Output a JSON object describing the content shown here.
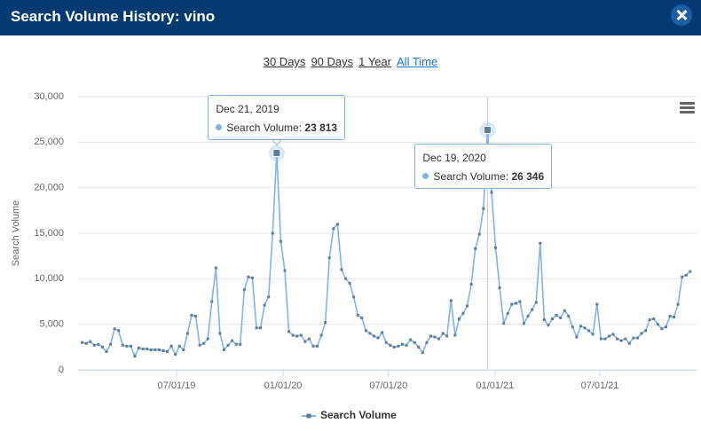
{
  "header": {
    "title": "Search Volume History: vino"
  },
  "ranges": [
    "30 Days",
    "90 Days",
    "1 Year",
    "All Time"
  ],
  "active_range": 3,
  "chart_data": {
    "type": "line",
    "y_label": "Search Volume",
    "x": [
      "2019-01-19",
      "2019-01-26",
      "2019-02-02",
      "2019-02-09",
      "2019-02-16",
      "2019-02-23",
      "2019-03-02",
      "2019-03-09",
      "2019-03-16",
      "2019-03-23",
      "2019-03-30",
      "2019-04-06",
      "2019-04-13",
      "2019-04-20",
      "2019-04-27",
      "2019-05-04",
      "2019-05-11",
      "2019-05-18",
      "2019-05-25",
      "2019-06-01",
      "2019-06-08",
      "2019-06-15",
      "2019-06-22",
      "2019-06-29",
      "2019-07-06",
      "2019-07-13",
      "2019-07-20",
      "2019-07-27",
      "2019-08-03",
      "2019-08-10",
      "2019-08-17",
      "2019-08-24",
      "2019-08-31",
      "2019-09-07",
      "2019-09-14",
      "2019-09-21",
      "2019-09-28",
      "2019-10-05",
      "2019-10-12",
      "2019-10-19",
      "2019-10-26",
      "2019-11-02",
      "2019-11-09",
      "2019-11-16",
      "2019-11-23",
      "2019-11-30",
      "2019-12-07",
      "2019-12-14",
      "2019-12-21",
      "2019-12-28",
      "2020-01-04",
      "2020-01-11",
      "2020-01-18",
      "2020-01-25",
      "2020-02-01",
      "2020-02-08",
      "2020-02-15",
      "2020-02-22",
      "2020-02-29",
      "2020-03-07",
      "2020-03-14",
      "2020-03-21",
      "2020-03-28",
      "2020-04-04",
      "2020-04-11",
      "2020-04-18",
      "2020-04-25",
      "2020-05-02",
      "2020-05-09",
      "2020-05-16",
      "2020-05-23",
      "2020-05-30",
      "2020-06-06",
      "2020-06-13",
      "2020-06-20",
      "2020-06-27",
      "2020-07-04",
      "2020-07-11",
      "2020-07-18",
      "2020-07-25",
      "2020-08-01",
      "2020-08-08",
      "2020-08-15",
      "2020-08-22",
      "2020-08-29",
      "2020-09-05",
      "2020-09-12",
      "2020-09-19",
      "2020-09-26",
      "2020-10-03",
      "2020-10-10",
      "2020-10-17",
      "2020-10-24",
      "2020-10-31",
      "2020-11-07",
      "2020-11-14",
      "2020-11-21",
      "2020-11-28",
      "2020-12-05",
      "2020-12-12",
      "2020-12-19",
      "2020-12-26",
      "2021-01-02",
      "2021-01-09",
      "2021-01-16",
      "2021-01-23",
      "2021-01-30",
      "2021-02-06",
      "2021-02-13",
      "2021-02-20",
      "2021-02-27",
      "2021-03-06",
      "2021-03-13",
      "2021-03-20",
      "2021-03-27",
      "2021-04-03",
      "2021-04-10",
      "2021-04-17",
      "2021-04-24",
      "2021-05-01",
      "2021-05-08",
      "2021-05-15",
      "2021-05-22",
      "2021-05-29",
      "2021-06-05",
      "2021-06-12",
      "2021-06-19",
      "2021-06-26",
      "2021-07-03",
      "2021-07-10",
      "2021-07-17",
      "2021-07-24",
      "2021-07-31",
      "2021-08-07",
      "2021-08-14",
      "2021-08-21",
      "2021-08-28",
      "2021-09-04",
      "2021-09-11",
      "2021-09-18",
      "2021-09-25",
      "2021-10-02",
      "2021-10-09",
      "2021-10-16",
      "2021-10-23",
      "2021-10-30",
      "2021-11-06",
      "2021-11-13",
      "2021-11-20",
      "2021-11-27",
      "2021-12-04"
    ],
    "series": [
      {
        "name": "Search Volume",
        "color": "#7cb5ec",
        "marker_color": "#5f7d95",
        "values": [
          3000,
          2900,
          3100,
          2700,
          2800,
          2500,
          2000,
          2800,
          4500,
          4300,
          2700,
          2600,
          2600,
          1500,
          2400,
          2300,
          2300,
          2200,
          2200,
          2200,
          2100,
          2000,
          2600,
          1700,
          2600,
          2200,
          4000,
          6000,
          5900,
          2700,
          2900,
          3400,
          7500,
          11200,
          4000,
          2200,
          2700,
          3200,
          2800,
          2800,
          8800,
          10200,
          10100,
          4600,
          4600,
          7100,
          8000,
          15000,
          23813,
          14100,
          10900,
          4200,
          3800,
          3700,
          3800,
          3100,
          3400,
          2600,
          2600,
          3800,
          5200,
          12300,
          15500,
          16000,
          11000,
          10000,
          9500,
          8000,
          6000,
          5700,
          4300,
          4000,
          3700,
          3500,
          4100,
          3000,
          2700,
          2500,
          2600,
          2800,
          2700,
          3300,
          3000,
          2500,
          1900,
          3000,
          3700,
          3600,
          3400,
          4000,
          3700,
          7600,
          3800,
          5600,
          6200,
          7000,
          9400,
          13300,
          14900,
          17700,
          26346,
          19500,
          13400,
          9000,
          5100,
          6200,
          7200,
          7300,
          7500,
          5100,
          5900,
          6600,
          7400,
          13900,
          5500,
          4900,
          5600,
          6000,
          5700,
          6500,
          5900,
          4700,
          3600,
          4800,
          4600,
          4300,
          3900,
          7200,
          3400,
          3400,
          3700,
          3900,
          3400,
          3200,
          3400,
          2900,
          3500,
          3500,
          4000,
          4300,
          5500,
          5600,
          5000,
          4500,
          4700,
          5900,
          5800,
          7200,
          10200,
          10400,
          10800
        ]
      }
    ],
    "xlim": [
      "2019-01-12",
      "2021-12-15"
    ],
    "xticks": [
      {
        "value": "2019-07-01",
        "label": "07/01/19"
      },
      {
        "value": "2020-01-01",
        "label": "01/01/20"
      },
      {
        "value": "2020-07-01",
        "label": "07/01/20"
      },
      {
        "value": "2021-01-01",
        "label": "01/01/21"
      },
      {
        "value": "2021-07-01",
        "label": "07/01/21"
      }
    ],
    "ylim": [
      0,
      30000
    ],
    "yticks": [
      0,
      {
        "value": 5000,
        "label": "5,000"
      },
      {
        "value": 10000,
        "label": "10,000"
      },
      {
        "value": 15000,
        "label": "15,000"
      },
      {
        "value": 20000,
        "label": "20,000"
      },
      {
        "value": 25000,
        "label": "25,000"
      },
      {
        "value": 30000,
        "label": "30,000"
      }
    ],
    "grid": true,
    "legend": "bottom",
    "crosshair": "2020-12-19",
    "annotations": [
      {
        "x": "2019-12-21",
        "date": "Dec 21, 2019",
        "label": "Search Volume:",
        "value": 23813,
        "value_label": "23 813"
      },
      {
        "x": "2020-12-19",
        "date": "Dec 19, 2020",
        "label": "Search Volume:",
        "value": 26346,
        "value_label": "26 346"
      }
    ]
  }
}
